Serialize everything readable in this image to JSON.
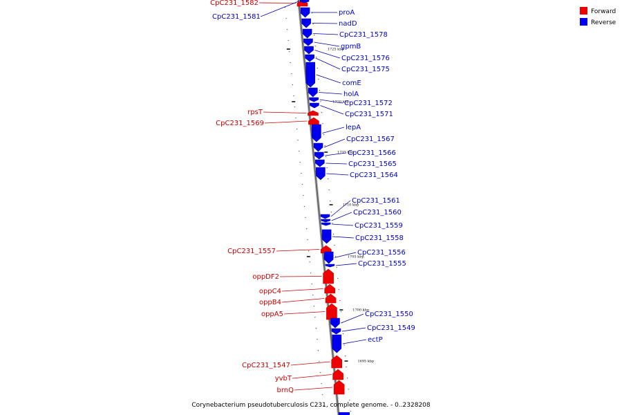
{
  "caption": "Corynebacterium pseudotuberculosis C231, complete genome. - 0..2328208",
  "legend": [
    {
      "label": "Forward",
      "color": "#ee0000"
    },
    {
      "label": "Reverse",
      "color": "#0000ee"
    }
  ],
  "ruler_marks": [
    "1725 kbp",
    "1720 kbp",
    "1715 kbp",
    "1710 kbp",
    "1705 kbp",
    "1700 kbp",
    "1695 kbp"
  ],
  "genes_forward": [
    "CpC231_1582",
    "rpsT",
    "CpC231_1569",
    "CpC231_1557",
    "oppDF2",
    "oppC4",
    "oppB4",
    "oppA5",
    "CpC231_1547",
    "yvbT",
    "brnQ"
  ],
  "genes_reverse": [
    "CpC231_1581",
    "proA",
    "nadD",
    "CpC231_1578",
    "gpmB",
    "CpC231_1576",
    "CpC231_1575",
    "comE",
    "holA",
    "CpC231_1572",
    "CpC231_1571",
    "lepA",
    "CpC231_1567",
    "CpC231_1566",
    "CpC231_1565",
    "CpC231_1564",
    "CpC231_1561",
    "CpC231_1560",
    "CpC231_1559",
    "CpC231_1558",
    "CpC231_1556",
    "CpC231_1555",
    "CpC231_1550",
    "CpC231_1549",
    "ectP"
  ]
}
